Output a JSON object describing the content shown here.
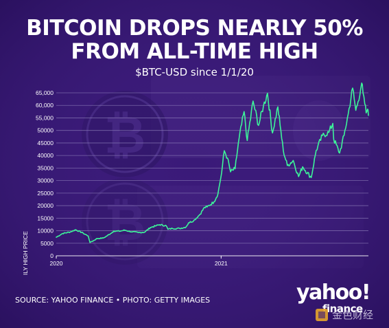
{
  "header": {
    "title_line1": "BITCOIN DROPS NEARLY 50%",
    "title_line2": "FROM ALL-TIME HIGH",
    "subtitle": "$BTC-USD since 1/1/20"
  },
  "footer": {
    "source": "SOURCE: YAHOO FINANCE • PHOTO: GETTY IMAGES",
    "logo_main": "yahoo!",
    "logo_sub": "finance",
    "watermark": "金色财经"
  },
  "colors": {
    "background": "#3a1a78",
    "line": "#3df59a",
    "grid": "#8e7fba",
    "text": "#ffffff"
  },
  "chart_data": {
    "type": "line",
    "title": "BITCOIN DROPS NEARLY 50% FROM ALL-TIME HIGH",
    "subtitle": "$BTC-USD since 1/1/20",
    "ylabel": "DAILY HIGH PRICE",
    "xlabel": "",
    "ylim": [
      0,
      65000
    ],
    "yticks": [
      0,
      5000,
      10000,
      15000,
      20000,
      25000,
      30000,
      35000,
      40000,
      45000,
      50000,
      55000,
      60000,
      65000
    ],
    "ytick_labels": [
      "0",
      "5000",
      "10000",
      "15000",
      "20000",
      "25000",
      "30000",
      "35000",
      "40000",
      "45000",
      "50000",
      "55,000",
      "60,000",
      "65,000"
    ],
    "xticks": [
      "2020-01-01",
      "2021-01-01"
    ],
    "xtick_labels": [
      "2020",
      "2021"
    ],
    "xlim": [
      "2020-01-01",
      "2021-11-24"
    ],
    "grid": true,
    "legend": "none",
    "series": [
      {
        "x": [
          "2020-01-01",
          "2020-01-15",
          "2020-02-01",
          "2020-02-13",
          "2020-03-01",
          "2020-03-12",
          "2020-03-16",
          "2020-04-01",
          "2020-04-15",
          "2020-05-01",
          "2020-05-08",
          "2020-05-20",
          "2020-06-01",
          "2020-06-15",
          "2020-07-01",
          "2020-07-15",
          "2020-07-28",
          "2020-08-10",
          "2020-08-17",
          "2020-09-01",
          "2020-09-05",
          "2020-09-15",
          "2020-10-01",
          "2020-10-15",
          "2020-10-21",
          "2020-11-01",
          "2020-11-15",
          "2020-11-25",
          "2020-12-01",
          "2020-12-16",
          "2020-12-25",
          "2021-01-02",
          "2021-01-08",
          "2021-01-15",
          "2021-01-22",
          "2021-02-01",
          "2021-02-10",
          "2021-02-21",
          "2021-02-28",
          "2021-03-13",
          "2021-03-25",
          "2021-04-05",
          "2021-04-14",
          "2021-04-25",
          "2021-05-07",
          "2021-05-12",
          "2021-05-19",
          "2021-05-28",
          "2021-06-10",
          "2021-06-22",
          "2021-07-01",
          "2021-07-20",
          "2021-07-31",
          "2021-08-14",
          "2021-08-28",
          "2021-09-06",
          "2021-09-08",
          "2021-09-21",
          "2021-10-01",
          "2021-10-10",
          "2021-10-20",
          "2021-10-27",
          "2021-11-01",
          "2021-11-09",
          "2021-11-12",
          "2021-11-16",
          "2021-11-19",
          "2021-11-22",
          "2021-11-24"
        ],
        "values": [
          7400,
          8900,
          9500,
          10400,
          9000,
          7900,
          5300,
          6900,
          7100,
          8900,
          9900,
          9800,
          10200,
          9600,
          9300,
          9400,
          11300,
          12000,
          12400,
          12000,
          10600,
          10900,
          10900,
          11500,
          13200,
          14000,
          16500,
          19300,
          19500,
          21500,
          24700,
          33000,
          41900,
          39000,
          33500,
          34700,
          47000,
          57500,
          46000,
          61700,
          52000,
          59800,
          64800,
          49000,
          59400,
          52000,
          42000,
          36000,
          38000,
          31600,
          35500,
          31200,
          42000,
          48000,
          49200,
          52800,
          46500,
          41000,
          48000,
          56500,
          66900,
          58000,
          61500,
          68900,
          65000,
          60500,
          57000,
          58500,
          56000
        ]
      }
    ]
  }
}
